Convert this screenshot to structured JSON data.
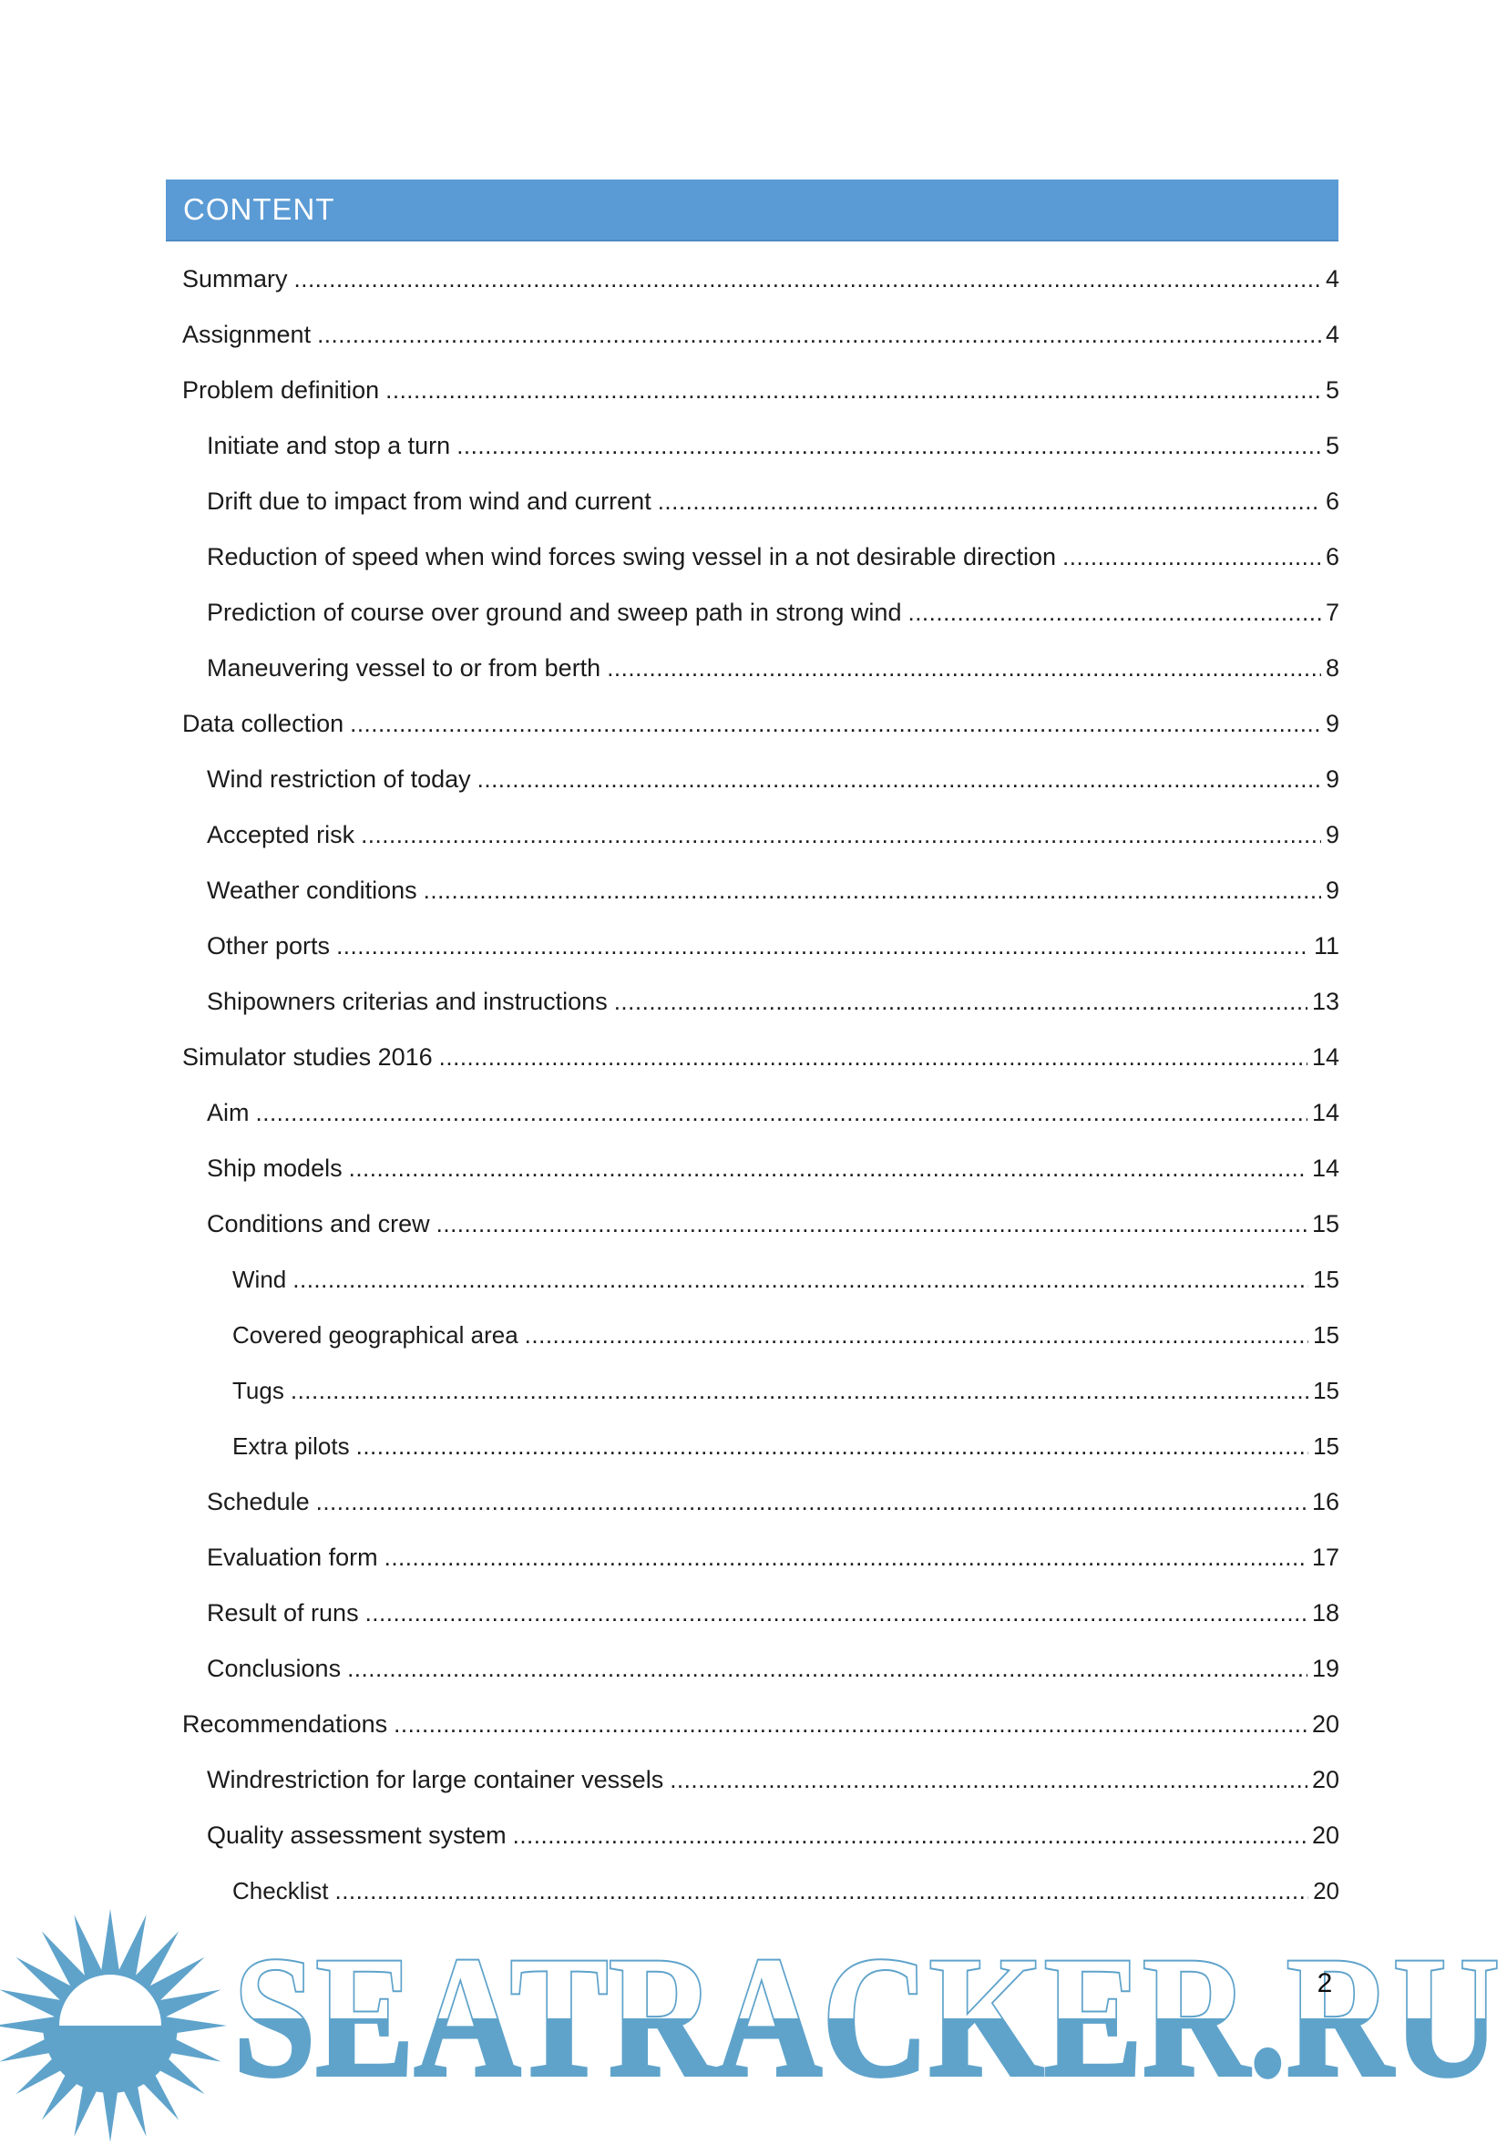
{
  "header": {
    "title": "CONTENT"
  },
  "toc": {
    "entries": [
      {
        "label": "Summary",
        "page": "4",
        "level": 1
      },
      {
        "label": "Assignment",
        "page": "4",
        "level": 1
      },
      {
        "label": "Problem definition",
        "page": "5",
        "level": 1
      },
      {
        "label": "Initiate and stop a turn",
        "page": "5",
        "level": 2
      },
      {
        "label": "Drift due to impact from wind and current",
        "page": "6",
        "level": 2
      },
      {
        "label": "Reduction of speed when wind forces swing vessel in a not desirable direction",
        "page": "6",
        "level": 2
      },
      {
        "label": "Prediction of course over ground and sweep path in strong wind",
        "page": "7",
        "level": 2
      },
      {
        "label": "Maneuvering vessel to or from berth",
        "page": "8",
        "level": 2
      },
      {
        "label": "Data collection",
        "page": "9",
        "level": 1
      },
      {
        "label": "Wind restriction of today",
        "page": "9",
        "level": 2
      },
      {
        "label": "Accepted risk",
        "page": "9",
        "level": 2
      },
      {
        "label": "Weather conditions",
        "page": "9",
        "level": 2
      },
      {
        "label": "Other ports",
        "page": "11",
        "level": 2
      },
      {
        "label": "Shipowners criterias and instructions",
        "page": "13",
        "level": 2
      },
      {
        "label": "Simulator studies 2016",
        "page": "14",
        "level": 1
      },
      {
        "label": "Aim",
        "page": "14",
        "level": 2
      },
      {
        "label": "Ship models",
        "page": "14",
        "level": 2
      },
      {
        "label": "Conditions and crew",
        "page": "15",
        "level": 2
      },
      {
        "label": "Wind",
        "page": "15",
        "level": 3
      },
      {
        "label": "Covered geographical area",
        "page": "15",
        "level": 3
      },
      {
        "label": "Tugs",
        "page": "15",
        "level": 3
      },
      {
        "label": "Extra pilots",
        "page": "15",
        "level": 3
      },
      {
        "label": "Schedule",
        "page": "16",
        "level": 2
      },
      {
        "label": "Evaluation form",
        "page": "17",
        "level": 2
      },
      {
        "label": "Result of runs",
        "page": "18",
        "level": 2
      },
      {
        "label": "Conclusions",
        "page": "19",
        "level": 2
      },
      {
        "label": "Recommendations",
        "page": "20",
        "level": 1
      },
      {
        "label": "Windrestriction for large container vessels",
        "page": "20",
        "level": 2
      },
      {
        "label": "Quality assessment system",
        "page": "20",
        "level": 2
      },
      {
        "label": "Checklist",
        "page": "20",
        "level": 3
      }
    ]
  },
  "watermark": {
    "wordmark": "SEATRACKER.RU"
  },
  "footer": {
    "page_number": "2"
  },
  "colors": {
    "header_bg": "#5b9bd5",
    "header_text": "#ffffff",
    "watermark_blue": "#5fa3cb",
    "body_text": "#1b1b1b"
  }
}
